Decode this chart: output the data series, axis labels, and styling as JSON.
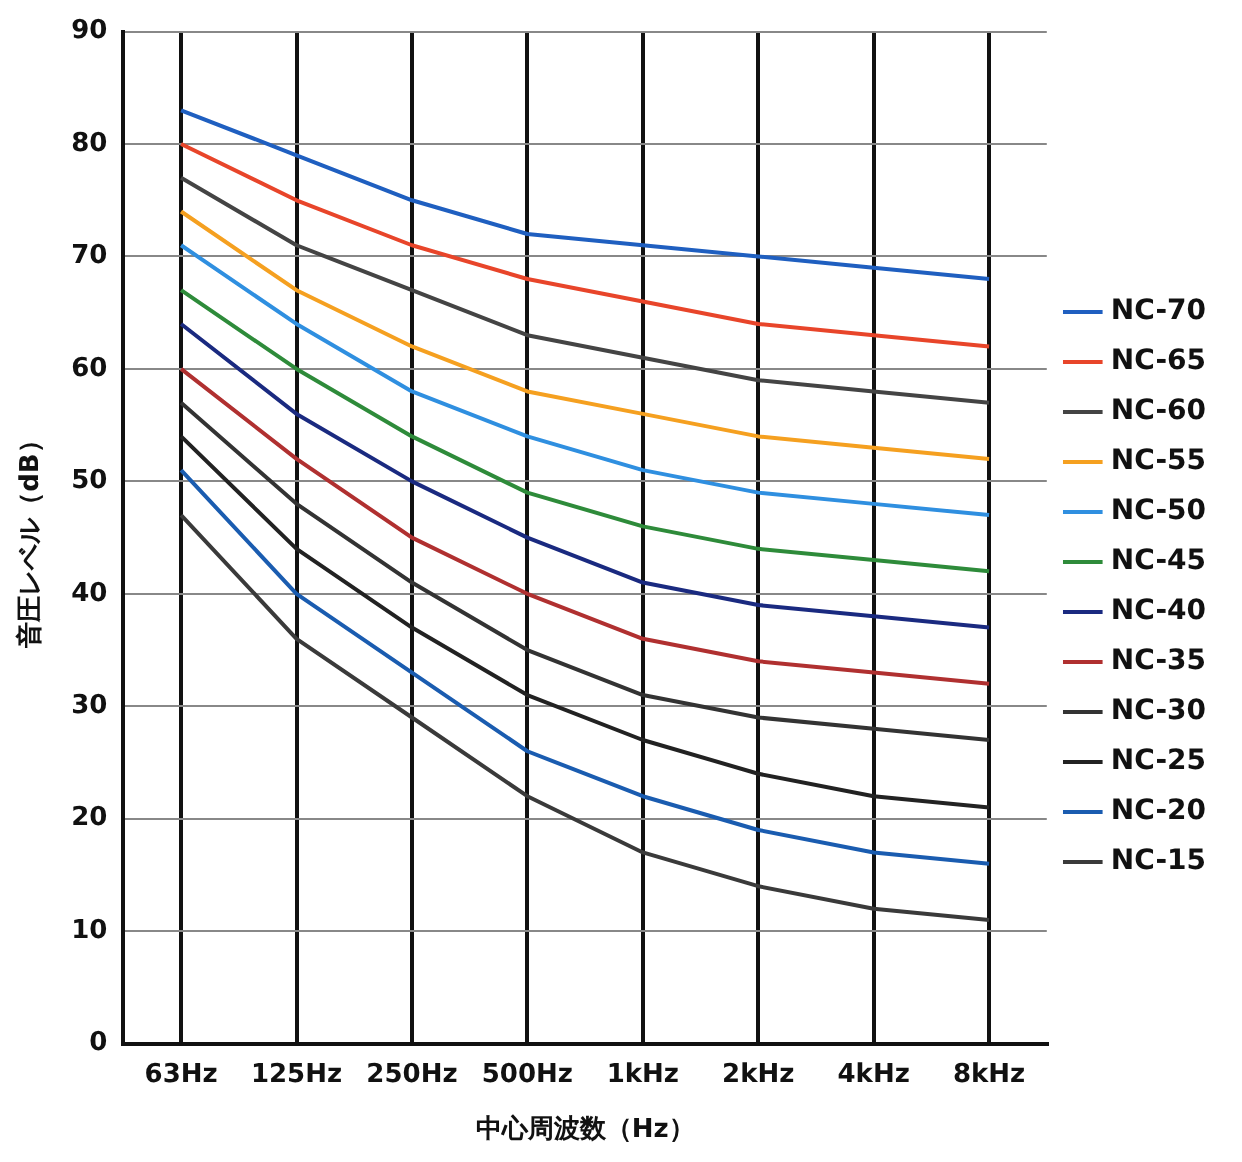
{
  "chart_data": {
    "type": "line",
    "xlabel": "中心周波数（Hz）",
    "ylabel": "音圧レベル（dB）",
    "categories": [
      "63Hz",
      "125Hz",
      "250Hz",
      "500Hz",
      "1kHz",
      "2kHz",
      "4kHz",
      "8kHz"
    ],
    "ylim": [
      0,
      90
    ],
    "yticks": [
      0,
      10,
      20,
      30,
      40,
      50,
      60,
      70,
      80,
      90
    ],
    "grid": true,
    "legend": "right",
    "marker": "none",
    "line_style": "solid",
    "series": [
      {
        "name": "NC-70",
        "color": "#1f5fc0",
        "values": [
          83,
          79,
          75,
          72,
          71,
          70,
          69,
          68
        ]
      },
      {
        "name": "NC-65",
        "color": "#e8452a",
        "values": [
          80,
          75,
          71,
          68,
          66,
          64,
          63,
          62
        ]
      },
      {
        "name": "NC-60",
        "color": "#444444",
        "values": [
          77,
          71,
          67,
          63,
          61,
          59,
          58,
          57
        ]
      },
      {
        "name": "NC-55",
        "color": "#f5a020",
        "values": [
          74,
          67,
          62,
          58,
          56,
          54,
          53,
          52
        ]
      },
      {
        "name": "NC-50",
        "color": "#2f8fe0",
        "values": [
          71,
          64,
          58,
          54,
          51,
          49,
          48,
          47
        ]
      },
      {
        "name": "NC-45",
        "color": "#2e8b3a",
        "values": [
          67,
          60,
          54,
          49,
          46,
          44,
          43,
          42
        ]
      },
      {
        "name": "NC-40",
        "color": "#1a2a80",
        "values": [
          64,
          56,
          50,
          45,
          41,
          39,
          38,
          37
        ]
      },
      {
        "name": "NC-35",
        "color": "#b03030",
        "values": [
          60,
          52,
          45,
          40,
          36,
          34,
          33,
          32
        ]
      },
      {
        "name": "NC-30",
        "color": "#333333",
        "values": [
          57,
          48,
          41,
          35,
          31,
          29,
          28,
          27
        ]
      },
      {
        "name": "NC-25",
        "color": "#222222",
        "values": [
          54,
          44,
          37,
          31,
          27,
          24,
          22,
          21
        ]
      },
      {
        "name": "NC-20",
        "color": "#1a5cb0",
        "values": [
          51,
          40,
          33,
          26,
          22,
          19,
          17,
          16
        ]
      },
      {
        "name": "NC-15",
        "color": "#3a3a3a",
        "values": [
          47,
          36,
          29,
          22,
          17,
          14,
          12,
          11
        ]
      }
    ]
  }
}
